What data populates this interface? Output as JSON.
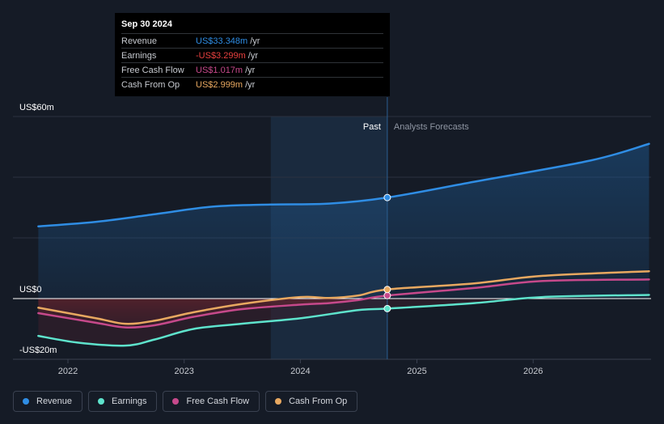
{
  "colors": {
    "revenue": "#2f8de4",
    "earnings": "#5ee3cc",
    "free_cash_flow": "#c6498b",
    "cash_from_op": "#e8a860",
    "background": "#151b26"
  },
  "tooltip": {
    "date": "Sep 30 2024",
    "rows": [
      {
        "label": "Revenue",
        "value": "US$33.348m",
        "unit": "/yr",
        "color": "#2f8de4"
      },
      {
        "label": "Earnings",
        "value": "-US$3.299m",
        "unit": "/yr",
        "color": "#e8413f"
      },
      {
        "label": "Free Cash Flow",
        "value": "US$1.017m",
        "unit": "/yr",
        "color": "#c6498b"
      },
      {
        "label": "Cash From Op",
        "value": "US$2.999m",
        "unit": "/yr",
        "color": "#e8a860"
      }
    ]
  },
  "legend": [
    {
      "label": "Revenue",
      "color": "#2f8de4"
    },
    {
      "label": "Earnings",
      "color": "#5ee3cc"
    },
    {
      "label": "Free Cash Flow",
      "color": "#c6498b"
    },
    {
      "label": "Cash From Op",
      "color": "#e8a860"
    }
  ],
  "chart_data": {
    "type": "line",
    "title": "",
    "xlabel": "",
    "ylabel": "",
    "past_label": "Past",
    "forecast_label": "Analysts Forecasts",
    "divider_date": "2024-09-30",
    "y_tick_labels": [
      {
        "value": 60,
        "label": "US$60m"
      },
      {
        "value": 0,
        "label": "US$0"
      },
      {
        "value": -20,
        "label": "-US$20m"
      }
    ],
    "x_ticks": [
      {
        "date": "2022-01-01",
        "label": "2022"
      },
      {
        "date": "2023-01-01",
        "label": "2023"
      },
      {
        "date": "2024-01-01",
        "label": "2024"
      },
      {
        "date": "2025-01-01",
        "label": "2025"
      },
      {
        "date": "2026-01-01",
        "label": "2026"
      }
    ],
    "ylim": [
      -20,
      60
    ],
    "xlim": [
      "2021-09-01",
      "2026-12-31"
    ],
    "grid": true,
    "series": [
      {
        "name": "Revenue",
        "points": [
          [
            "2021-09-30",
            23.8
          ],
          [
            "2022-03-31",
            25.3
          ],
          [
            "2022-09-30",
            27.8
          ],
          [
            "2023-03-31",
            30.3
          ],
          [
            "2023-09-30",
            31.0
          ],
          [
            "2024-03-31",
            31.3
          ],
          [
            "2024-09-30",
            33.3
          ],
          [
            "2025-06-30",
            38.5
          ],
          [
            "2026-06-30",
            45.5
          ],
          [
            "2026-12-31",
            51.0
          ]
        ]
      },
      {
        "name": "Earnings",
        "points": [
          [
            "2021-09-30",
            -12.3
          ],
          [
            "2022-01-31",
            -14.5
          ],
          [
            "2022-06-30",
            -15.5
          ],
          [
            "2022-09-30",
            -13.5
          ],
          [
            "2023-01-31",
            -10.0
          ],
          [
            "2023-06-30",
            -8.3
          ],
          [
            "2023-12-31",
            -6.5
          ],
          [
            "2024-06-30",
            -3.8
          ],
          [
            "2024-09-30",
            -3.3
          ],
          [
            "2025-06-30",
            -1.5
          ],
          [
            "2026-01-31",
            0.5
          ],
          [
            "2026-12-31",
            1.2
          ]
        ]
      },
      {
        "name": "Free Cash Flow",
        "points": [
          [
            "2021-09-30",
            -4.8
          ],
          [
            "2022-03-31",
            -8.0
          ],
          [
            "2022-06-30",
            -9.5
          ],
          [
            "2022-09-30",
            -8.8
          ],
          [
            "2023-01-31",
            -6.0
          ],
          [
            "2023-06-30",
            -3.5
          ],
          [
            "2023-12-31",
            -2.0
          ],
          [
            "2024-03-31",
            -1.5
          ],
          [
            "2024-06-30",
            -0.5
          ],
          [
            "2024-09-30",
            1.0
          ],
          [
            "2025-06-30",
            3.5
          ],
          [
            "2026-01-31",
            5.8
          ],
          [
            "2026-12-31",
            6.3
          ]
        ]
      },
      {
        "name": "Cash From Op",
        "points": [
          [
            "2021-09-30",
            -3.0
          ],
          [
            "2022-03-31",
            -6.5
          ],
          [
            "2022-06-30",
            -8.3
          ],
          [
            "2022-09-30",
            -7.3
          ],
          [
            "2023-01-31",
            -4.5
          ],
          [
            "2023-06-30",
            -1.8
          ],
          [
            "2023-12-31",
            0.5
          ],
          [
            "2024-03-31",
            0.2
          ],
          [
            "2024-06-30",
            1.0
          ],
          [
            "2024-09-30",
            3.0
          ],
          [
            "2025-06-30",
            5.0
          ],
          [
            "2026-01-31",
            7.5
          ],
          [
            "2026-12-31",
            9.0
          ]
        ]
      }
    ]
  }
}
